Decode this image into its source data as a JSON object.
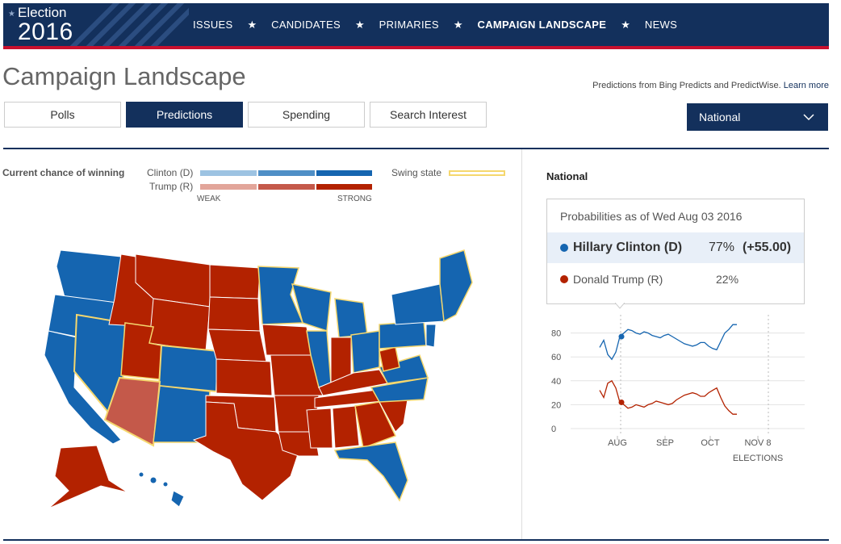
{
  "header": {
    "logo_word": "Election",
    "logo_year": "2016",
    "nav": [
      {
        "label": "ISSUES",
        "active": false
      },
      {
        "label": "CANDIDATES",
        "active": false
      },
      {
        "label": "PRIMARIES",
        "active": false
      },
      {
        "label": "CAMPAIGN LANDSCAPE",
        "active": true
      },
      {
        "label": "NEWS",
        "active": false
      }
    ],
    "separator": "★"
  },
  "page": {
    "title": "Campaign Landscape",
    "source_text": "Predictions from Bing Predicts and PredictWise.",
    "learn_more": "Learn more"
  },
  "tabs": [
    {
      "label": "Polls",
      "active": false
    },
    {
      "label": "Predictions",
      "active": true
    },
    {
      "label": "Spending",
      "active": false
    },
    {
      "label": "Search Interest",
      "active": false
    }
  ],
  "region_select": {
    "value": "National"
  },
  "legend": {
    "title": "Current chance of winning",
    "clinton_label": "Clinton (D)",
    "trump_label": "Trump (R)",
    "weak": "WEAK",
    "strong": "STRONG",
    "swing_label": "Swing state",
    "clinton_colors": [
      "#9dc3e2",
      "#4f8fc6",
      "#1565b0"
    ],
    "trump_colors": [
      "#e2a59a",
      "#c4594a",
      "#b32200"
    ],
    "swing_color": "#f5d76e"
  },
  "panel": {
    "title": "National",
    "as_of": "Probabilities as of Wed Aug 03 2016",
    "candidates": [
      {
        "name": "Hillary Clinton (D)",
        "pct": "77%",
        "change": "(+55.00)",
        "color": "#1565b0"
      },
      {
        "name": "Donald Trump (R)",
        "pct": "22%",
        "change": "",
        "color": "#b32200"
      }
    ]
  },
  "chart_data": {
    "type": "line",
    "y_ticks": [
      "80",
      "60",
      "40",
      "20",
      "0"
    ],
    "x_ticks": [
      "AUG",
      "SEP",
      "OCT",
      "NOV 8"
    ],
    "x_extra_label": "ELECTIONS",
    "ylim": [
      0,
      90
    ],
    "series": [
      {
        "name": "Hillary Clinton (D)",
        "color": "#1565b0",
        "values": [
          68,
          74,
          62,
          58,
          64,
          77,
          80,
          83,
          82,
          80,
          79,
          81,
          80,
          78,
          77,
          76,
          78,
          79,
          77,
          75,
          73,
          71,
          70,
          69,
          70,
          72,
          72,
          69,
          67,
          66,
          73,
          80,
          83,
          87,
          87
        ]
      },
      {
        "name": "Donald Trump (R)",
        "color": "#b32200",
        "values": [
          32,
          26,
          38,
          40,
          34,
          22,
          20,
          17,
          18,
          20,
          19,
          18,
          20,
          21,
          23,
          22,
          21,
          20,
          21,
          24,
          26,
          28,
          29,
          30,
          29,
          27,
          27,
          30,
          32,
          34,
          26,
          19,
          15,
          12,
          12
        ]
      }
    ],
    "marker_value": {
      "clinton": 77,
      "trump": 22
    }
  },
  "states_note": "map"
}
